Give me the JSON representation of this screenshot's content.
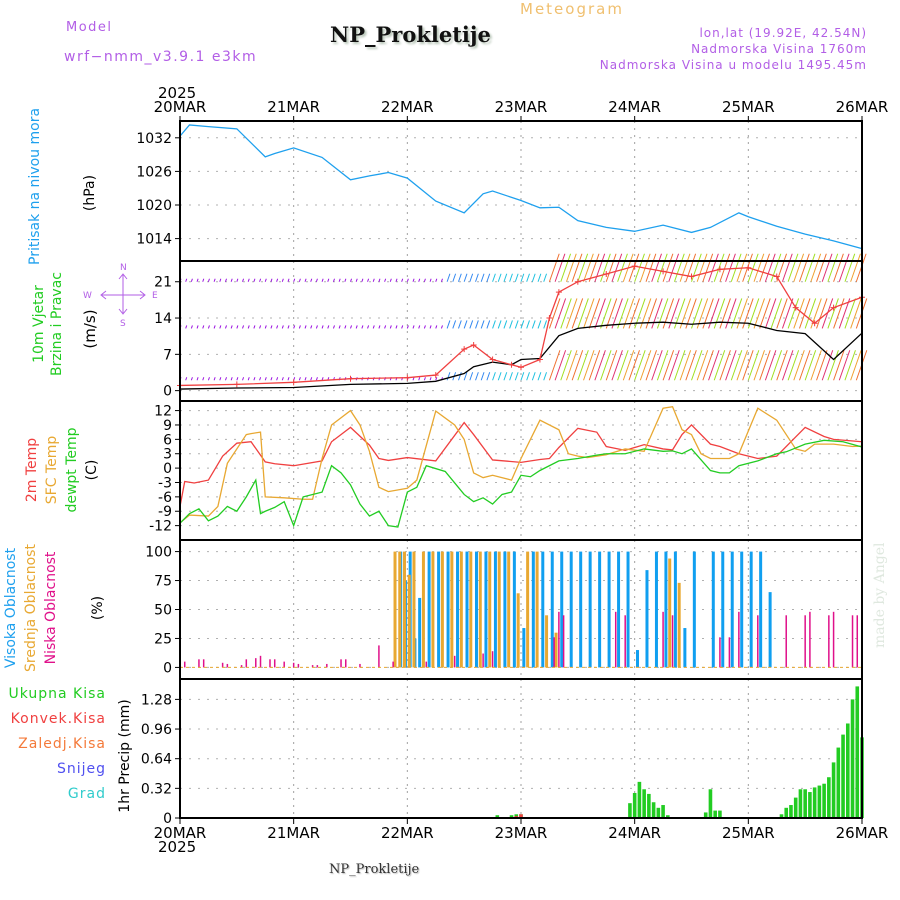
{
  "header": {
    "model_label": "Model",
    "model_name": "wrf−nmm_v3.9.1  e3km",
    "title": "NP_Prokletije",
    "meteogram_label": "Meteogram",
    "lonlat": "lon,lat (19.92E, 42.54N)",
    "elevation": "Nadmorska Visina 1760m",
    "model_elevation": "Nadmorska Visina u modelu 1495.45m",
    "year_top": "2025"
  },
  "footer": {
    "station": "NP_Prokletije",
    "credit": "made by Angel",
    "year_bottom": "2025"
  },
  "colors": {
    "pressure": "#1ea0ee",
    "temp2m": "#f04040",
    "sfc_temp": "#e8a832",
    "dewpoint": "#22cc22",
    "high_cloud": "#109ff0",
    "mid_cloud": "#e8a832",
    "low_cloud": "#e0108a",
    "precip_total": "#22cc22",
    "precip_conv": "#f04040",
    "wind_calm": "#9a10e0",
    "header_violet": "#b25ee6"
  },
  "chart_data": [
    {
      "type": "line",
      "name": "pressure",
      "title": "Pritisak na nivou mora",
      "ylabel": "(hPa)",
      "ylim": [
        1010,
        1035
      ],
      "yticks": [
        "1032",
        "1026",
        "1020",
        "1014"
      ],
      "ytick_values": [
        1032,
        1026,
        1020,
        1014
      ],
      "x_unit": "hours since 20MAR 00Z",
      "grid": true,
      "series": [
        {
          "name": "Pritisak na nivou mora",
          "x": [
            0,
            2,
            6,
            12,
            18,
            20,
            24,
            30,
            36,
            40,
            44,
            48,
            54,
            60,
            64,
            66,
            72,
            76,
            80,
            84,
            90,
            96,
            102,
            108,
            112,
            118,
            120,
            126,
            132,
            138,
            144
          ],
          "values": [
            1032.3,
            1034.3,
            1034,
            1033.6,
            1028.6,
            1029.2,
            1030.2,
            1028.5,
            1024.5,
            1025.2,
            1025.8,
            1024.8,
            1020.7,
            1018.6,
            1022,
            1022.5,
            1020.8,
            1019.5,
            1019.6,
            1017.2,
            1016,
            1015.3,
            1016.4,
            1015.1,
            1016,
            1018.6,
            1017.9,
            1016.2,
            1014.8,
            1013.6,
            1012.2
          ]
        }
      ]
    },
    {
      "type": "line",
      "name": "wind",
      "title": "10m Vjetar Brzina i Pravac",
      "ylabel": "(m/s)",
      "ylim": [
        -2,
        25
      ],
      "yticks": [
        "21",
        "14",
        "7",
        "0"
      ],
      "ytick_values": [
        21,
        14,
        7,
        0
      ],
      "compass": {
        "n": "N",
        "s": "S",
        "w": "W",
        "e": "E"
      },
      "grid": true,
      "series": [
        {
          "name": "Brzina vjetra",
          "x": [
            0,
            12,
            24,
            36,
            48,
            54,
            60,
            62,
            66,
            70,
            72,
            76,
            80,
            84,
            90,
            96,
            102,
            108,
            114,
            120,
            126,
            132,
            138,
            144
          ],
          "values": [
            0.3,
            0.5,
            0.6,
            1.2,
            1.4,
            1.8,
            3.3,
            4.6,
            5.5,
            5,
            6,
            6.2,
            10.6,
            12,
            12.6,
            13,
            13.2,
            12.8,
            13.2,
            13.0,
            11.6,
            11,
            6,
            11.1
          ]
        },
        {
          "name": "Udari",
          "x": [
            0,
            12,
            24,
            36,
            48,
            54,
            60,
            62,
            66,
            70,
            72,
            76,
            78,
            80,
            84,
            90,
            96,
            102,
            108,
            114,
            120,
            126,
            130,
            134,
            138,
            144
          ],
          "values": [
            1,
            1.2,
            1.6,
            2.3,
            2.5,
            3.0,
            8,
            8.8,
            6,
            5,
            4.5,
            6,
            14,
            19,
            21,
            22.5,
            24,
            23,
            22,
            23.4,
            23.7,
            22,
            16,
            13,
            16,
            18
          ]
        }
      ],
      "wind_arrow_rows_ms": [
        21,
        12,
        2
      ]
    },
    {
      "type": "line",
      "name": "temperature",
      "title": "2m Temp / SFC Temp / dewpt Temp",
      "ylabel": "(C)",
      "ylim": [
        -15,
        14
      ],
      "yticks": [
        "12",
        "9",
        "6",
        "3",
        "0",
        "-3",
        "-6",
        "-9",
        "-12"
      ],
      "ytick_values": [
        12,
        9,
        6,
        3,
        0,
        -3,
        -6,
        -9,
        -12
      ],
      "grid": true,
      "series": [
        {
          "name": "2m Temp",
          "x": [
            0,
            1,
            3,
            6,
            9,
            12,
            15,
            18,
            20,
            24,
            30,
            32,
            36,
            40,
            42,
            44,
            48,
            54,
            60,
            62,
            66,
            72,
            76,
            78,
            80,
            84,
            88,
            90,
            94,
            98,
            102,
            104,
            106,
            108,
            112,
            114,
            118,
            122,
            126,
            130,
            132,
            136,
            138,
            144
          ],
          "values": [
            -8,
            -2.8,
            -3.1,
            -2.5,
            2.5,
            5.2,
            5.5,
            1.3,
            0.9,
            0.5,
            1.5,
            5.5,
            8.5,
            4.8,
            2,
            1.6,
            2.2,
            1.5,
            9.5,
            7,
            1.7,
            1.2,
            1.8,
            2,
            4.3,
            8.3,
            7.5,
            4.5,
            3.7,
            4.9,
            4,
            3.8,
            7,
            9,
            5,
            4.5,
            3,
            2,
            2.5,
            6.5,
            8.5,
            6.6,
            6,
            5.5
          ]
        },
        {
          "name": "SFC Temp",
          "x": [
            0,
            2,
            6,
            8,
            10,
            14,
            15,
            17,
            18,
            22,
            26,
            28,
            30,
            32,
            36,
            38,
            40,
            42,
            44,
            48,
            50,
            54,
            58,
            60,
            62,
            64,
            66,
            70,
            72,
            76,
            80,
            82,
            84,
            86,
            90,
            94,
            98,
            102,
            104,
            106,
            108,
            110,
            112,
            114,
            116,
            118,
            122,
            126,
            130,
            132,
            134,
            138,
            142,
            144
          ],
          "values": [
            -11.4,
            -9.8,
            -10,
            -8,
            1,
            7,
            7.2,
            7.5,
            -6,
            -6.2,
            -6.5,
            -6.5,
            2,
            9,
            12,
            9,
            3.5,
            -4,
            -4.9,
            -4.2,
            -2.5,
            11.9,
            9,
            6,
            -1,
            -2,
            -1.5,
            -2.5,
            2,
            10,
            8,
            3,
            2.5,
            2.2,
            2.8,
            4,
            3.5,
            12.5,
            12.8,
            8,
            7,
            3,
            2,
            2,
            2,
            3,
            12.5,
            10,
            4,
            3.5,
            5,
            5,
            4.5,
            4.6
          ]
        },
        {
          "name": "dewpt Temp",
          "x": [
            0,
            2,
            4,
            6,
            8,
            10,
            12,
            14,
            16,
            17,
            18,
            20,
            22,
            24,
            26,
            30,
            32,
            34,
            36,
            38,
            40,
            42,
            44,
            46,
            48,
            50,
            52,
            56,
            60,
            62,
            64,
            66,
            68,
            70,
            72,
            74,
            76,
            80,
            84,
            88,
            90,
            94,
            98,
            102,
            104,
            106,
            108,
            112,
            114,
            116,
            118,
            122,
            126,
            128,
            132,
            136,
            140,
            144
          ],
          "values": [
            -11.5,
            -9.5,
            -8.5,
            -11,
            -10,
            -8,
            -9,
            -6,
            -2.5,
            -9.5,
            -9,
            -8.2,
            -7,
            -12,
            -6,
            -5,
            0.5,
            -1,
            -3.5,
            -7.5,
            -10,
            -9,
            -12,
            -12.3,
            -5,
            -4,
            0.5,
            -0.7,
            -5.5,
            -7,
            -6.2,
            -7.5,
            -5.5,
            -5,
            -1.5,
            -1.8,
            -0.5,
            1.5,
            2,
            2.7,
            3,
            3,
            4,
            3.5,
            3.6,
            3,
            4,
            -0.5,
            -1,
            -1,
            0.5,
            1.5,
            3,
            3.4,
            5,
            5.8,
            5.5,
            4.4
          ]
        }
      ]
    },
    {
      "type": "bar",
      "name": "cloud_cover",
      "title": "Visoka Oblacnost / Srednja Oblacnost / Niska Oblacnost",
      "ylabel": "(%)",
      "ylim": [
        -10,
        110
      ],
      "yticks": [
        "100",
        "75",
        "50",
        "25",
        "0"
      ],
      "ytick_values": [
        100,
        75,
        50,
        25,
        0
      ],
      "grid": true,
      "series": [
        {
          "name": "Visoka Oblacnost",
          "x": [
            46,
            47,
            48,
            49,
            50,
            52,
            54,
            56,
            58,
            60,
            62,
            64,
            66,
            68,
            70,
            72,
            74,
            76,
            78,
            80,
            82,
            84,
            86,
            88,
            90,
            92,
            94,
            96,
            98,
            100,
            102,
            104,
            106,
            108,
            112,
            114,
            116,
            118,
            120,
            122,
            124
          ],
          "values": [
            100,
            75,
            100,
            25,
            60,
            100,
            100,
            100,
            100,
            100,
            100,
            100,
            100,
            100,
            100,
            34,
            100,
            100,
            100,
            100,
            100,
            100,
            100,
            100,
            100,
            100,
            100,
            15,
            84,
            100,
            100,
            100,
            34,
            100,
            100,
            100,
            100,
            100,
            100,
            100,
            65
          ]
        },
        {
          "name": "Srednja Oblacnost",
          "x": [
            46,
            47,
            48,
            49,
            50,
            52,
            54,
            56,
            58,
            60,
            62,
            64,
            66,
            68,
            70,
            72,
            74,
            76,
            78,
            80,
            104,
            106
          ],
          "values": [
            100,
            100,
            100,
            80,
            100,
            100,
            100,
            100,
            100,
            100,
            100,
            100,
            100,
            100,
            100,
            64,
            100,
            100,
            45,
            30,
            94,
            73
          ]
        },
        {
          "name": "Niska Oblacnost",
          "x": [
            1,
            4,
            5,
            9,
            10,
            13,
            14,
            16,
            17,
            19,
            20,
            22,
            24,
            25,
            28,
            29,
            31,
            34,
            35,
            38,
            42,
            45,
            52,
            58,
            64,
            66,
            79,
            80,
            81,
            92,
            94,
            102,
            104,
            114,
            116,
            118,
            122,
            128,
            132,
            133,
            137,
            138,
            142,
            143
          ],
          "values": [
            5,
            7,
            7,
            4,
            3,
            2,
            7,
            8,
            10,
            7,
            7,
            5,
            4,
            3,
            2,
            2,
            3,
            7,
            7,
            3,
            19,
            5,
            5,
            10,
            12,
            14,
            26,
            48,
            45,
            48,
            45,
            48,
            45,
            26,
            26,
            48,
            45,
            45,
            45,
            48,
            45,
            48,
            45,
            45
          ]
        }
      ]
    },
    {
      "type": "bar",
      "name": "precipitation",
      "title": "1hr Precip (mm)",
      "legend": [
        "Ukupna Kisa",
        "Konvek.Kisa",
        "Zaledj.Kisa",
        "Snijeg",
        "Grad"
      ],
      "ylim": [
        0,
        1.5
      ],
      "yticks": [
        "1.28",
        "0.96",
        "0.64",
        "0.32",
        "0"
      ],
      "ytick_values": [
        1.28,
        0.96,
        0.64,
        0.32,
        0
      ],
      "grid": true,
      "series": [
        {
          "name": "Ukupna Kisa",
          "x": [
            67,
            70,
            71,
            72,
            94,
            95,
            96,
            97,
            98,
            99,
            100,
            101,
            102,
            103,
            104,
            105,
            106,
            111,
            112,
            113,
            114,
            115,
            125,
            126,
            127,
            128,
            129,
            130,
            131,
            132,
            133,
            134,
            135,
            136,
            137,
            138,
            139,
            140,
            141,
            142,
            143,
            144
          ],
          "values": [
            0.03,
            0.03,
            0.04,
            0.04,
            0.01,
            0.16,
            0.27,
            0.39,
            0.31,
            0.26,
            0.17,
            0.11,
            0.14,
            0.03,
            0.01,
            0.0,
            0.0,
            0.06,
            0.31,
            0.08,
            0.08,
            0.0,
            0.01,
            0.01,
            0.04,
            0.11,
            0.14,
            0.22,
            0.31,
            0.31,
            0.28,
            0.33,
            0.35,
            0.37,
            0.44,
            0.6,
            0.76,
            0.9,
            1.02,
            1.28,
            1.42,
            0.87
          ]
        },
        {
          "name": "Konvek.Kisa",
          "x": [
            67,
            71,
            72,
            111,
            113
          ],
          "values": [
            0.01,
            0.02,
            0.04,
            0.01,
            0.01
          ]
        },
        {
          "name": "Zaledj.Kisa",
          "x": [],
          "values": []
        },
        {
          "name": "Snijeg",
          "x": [],
          "values": []
        },
        {
          "name": "Grad",
          "x": [],
          "values": []
        }
      ]
    }
  ],
  "x_axis": {
    "range_hours": [
      0,
      144
    ],
    "tick_labels": [
      "20MAR",
      "21MAR",
      "22MAR",
      "23MAR",
      "24MAR",
      "25MAR",
      "26MAR"
    ]
  }
}
